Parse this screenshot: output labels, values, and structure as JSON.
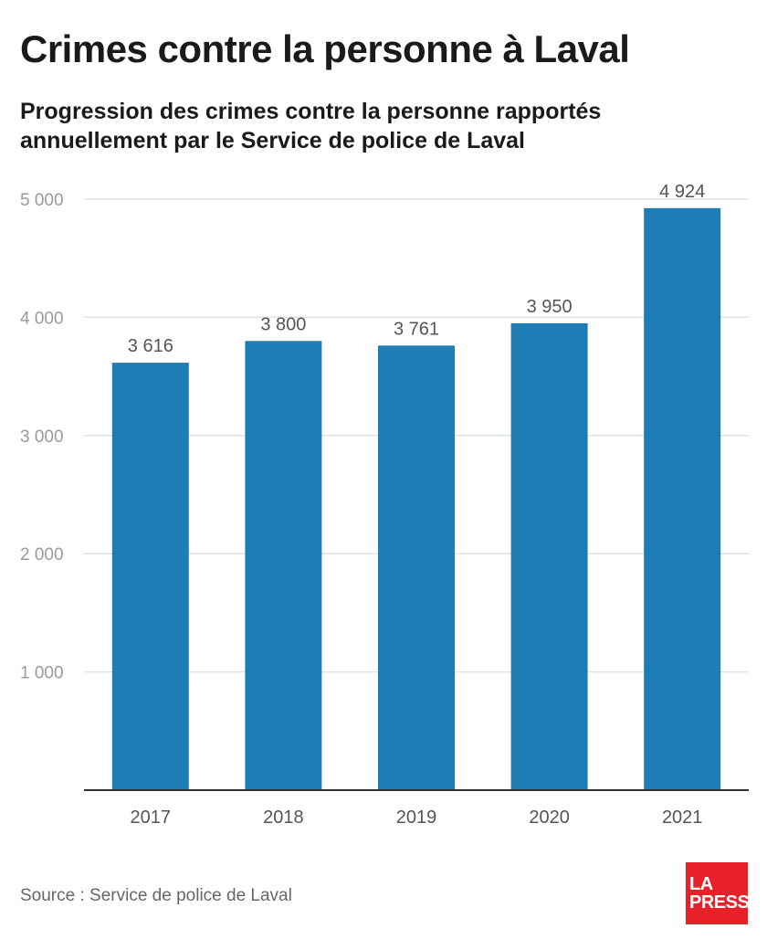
{
  "header": {
    "title": "Crimes contre la personne à Laval",
    "subtitle": "Progression des crimes contre la personne rapportés annuellement par le Service de police de Laval"
  },
  "footer": {
    "source": "Source : Service de police de Laval",
    "logo_line1": "LA",
    "logo_line2": "PRESSE"
  },
  "colors": {
    "bar": "#1f7db6",
    "logo_bg": "#e8202a"
  },
  "chart_data": {
    "type": "bar",
    "title": "Crimes contre la personne à Laval",
    "subtitle": "Progression des crimes contre la personne rapportés annuellement par le Service de police de Laval",
    "categories": [
      "2017",
      "2018",
      "2019",
      "2020",
      "2021"
    ],
    "values": [
      3616,
      3800,
      3761,
      3950,
      4924
    ],
    "value_labels": [
      "3 616",
      "3 800",
      "3 761",
      "3 950",
      "4 924"
    ],
    "ylim": [
      0,
      5000
    ],
    "yticks": [
      1000,
      2000,
      3000,
      4000,
      5000
    ],
    "ytick_labels": [
      "1 000",
      "2 000",
      "3 000",
      "4 000",
      "5 000"
    ],
    "grid": true,
    "xlabel": "",
    "ylabel": ""
  }
}
